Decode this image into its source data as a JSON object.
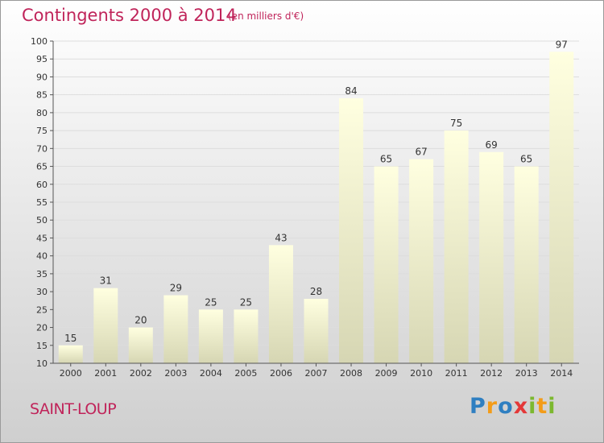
{
  "header": {
    "title": "Contingents 2000 à 2014",
    "subtitle": "(en milliers d'€)"
  },
  "footer": {
    "commune": "SAINT-LOUP",
    "brand_letters": [
      {
        "ch": "P",
        "color": "#2f7fc1"
      },
      {
        "ch": "r",
        "color": "#f39c19"
      },
      {
        "ch": "o",
        "color": "#2f7fc1"
      },
      {
        "ch": "x",
        "color": "#e43838"
      },
      {
        "ch": "i",
        "color": "#7cb82f"
      },
      {
        "ch": "t",
        "color": "#f39c19"
      },
      {
        "ch": "i",
        "color": "#7cb82f"
      }
    ]
  },
  "chart_data": {
    "type": "bar",
    "title": "Contingents 2000 à 2014",
    "subtitle": "(en milliers d'€)",
    "categories": [
      "2000",
      "2001",
      "2002",
      "2003",
      "2004",
      "2005",
      "2006",
      "2007",
      "2008",
      "2009",
      "2010",
      "2011",
      "2012",
      "2013",
      "2014"
    ],
    "values": [
      15,
      31,
      20,
      29,
      25,
      25,
      43,
      28,
      84,
      65,
      67,
      75,
      69,
      65,
      97
    ],
    "ylim": [
      10,
      100
    ],
    "yticks": [
      10,
      15,
      20,
      25,
      30,
      35,
      40,
      45,
      50,
      55,
      60,
      65,
      70,
      75,
      80,
      85,
      90,
      95,
      100
    ],
    "grid": true,
    "bar_color_top": "#ffffe0",
    "bar_color_bottom": "#d6d6b3",
    "text_color": "#333333",
    "axis_color": "#555555"
  }
}
